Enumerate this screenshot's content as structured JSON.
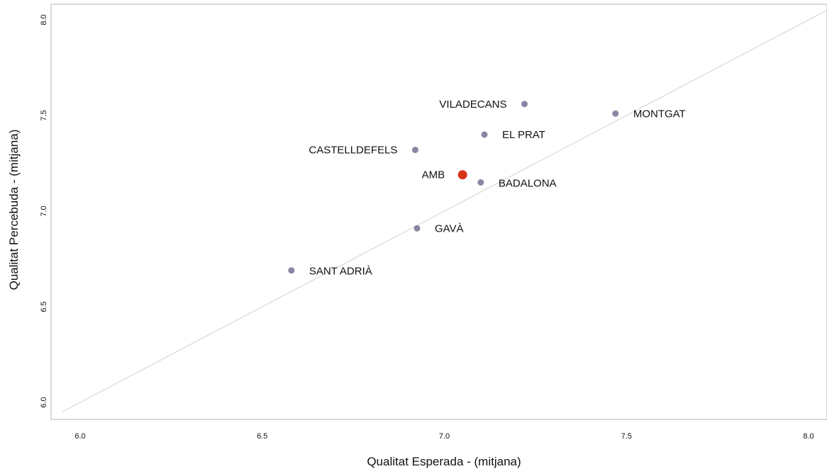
{
  "chart_data": {
    "type": "scatter",
    "title": "",
    "xlabel": "Qualitat Esperada - (mitjana)",
    "ylabel": "Qualitat Percebuda - (mitjana)",
    "xlim": [
      5.9,
      8.05
    ],
    "ylim": [
      5.95,
      8.05
    ],
    "xticks": [
      "6.0",
      "6.5",
      "7.0",
      "7.5",
      "8.0"
    ],
    "yticks": [
      "6.0",
      "6.5",
      "7.0",
      "7.5",
      "8.0"
    ],
    "grid": false,
    "reference_line": "y = x",
    "colors": {
      "point": "#8b84a2",
      "highlight": "#d7341a",
      "reference_line": "#d9d9d9",
      "frame": "#cccccc"
    },
    "points": [
      {
        "label": "VILADECANS",
        "x": 7.22,
        "y": 7.56,
        "label_side": "left"
      },
      {
        "label": "MONTGAT",
        "x": 7.47,
        "y": 7.51,
        "label_side": "right"
      },
      {
        "label": "EL PRAT",
        "x": 7.11,
        "y": 7.4,
        "label_side": "right"
      },
      {
        "label": "CASTELLDEFELS",
        "x": 6.92,
        "y": 7.32,
        "label_side": "left"
      },
      {
        "label": "AMB",
        "x": 7.05,
        "y": 7.19,
        "label_side": "left",
        "highlight": true
      },
      {
        "label": "BADALONA",
        "x": 7.1,
        "y": 7.15,
        "label_side": "right"
      },
      {
        "label": "GAVÀ",
        "x": 6.925,
        "y": 6.91,
        "label_side": "right"
      },
      {
        "label": "SANT ADRIÀ",
        "x": 6.58,
        "y": 6.69,
        "label_side": "right"
      }
    ]
  }
}
